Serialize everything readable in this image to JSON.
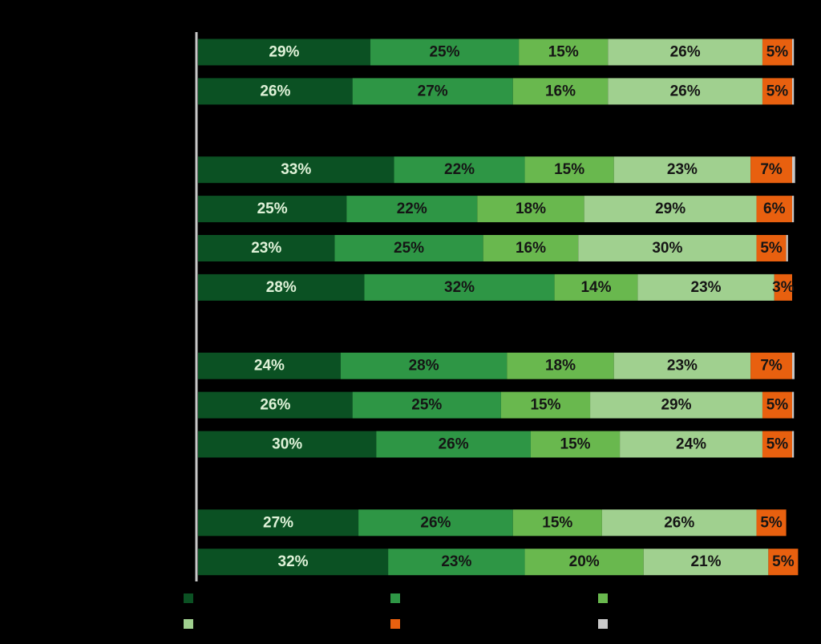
{
  "chart_data": {
    "type": "stacked-bar-horizontal",
    "xlim": [
      0,
      100
    ],
    "series": [
      {
        "color": "#0b5123",
        "values": [
          29,
          26,
          33,
          25,
          23,
          28,
          24,
          26,
          30,
          27,
          32
        ],
        "value_labels": [
          "29%",
          "26%",
          "33%",
          "25%",
          "23%",
          "28%",
          "24%",
          "26%",
          "30%",
          "27%",
          "32%"
        ]
      },
      {
        "color": "#2e9645",
        "values": [
          25,
          27,
          22,
          22,
          25,
          32,
          28,
          25,
          26,
          26,
          23
        ],
        "value_labels": [
          "25%",
          "27%",
          "22%",
          "22%",
          "25%",
          "32%",
          "28%",
          "25%",
          "26%",
          "26%",
          "23%"
        ]
      },
      {
        "color": "#69b84e",
        "values": [
          15,
          16,
          15,
          18,
          16,
          14,
          18,
          15,
          15,
          15,
          20
        ],
        "value_labels": [
          "15%",
          "16%",
          "15%",
          "18%",
          "16%",
          "14%",
          "18%",
          "15%",
          "15%",
          "15%",
          "20%"
        ]
      },
      {
        "color": "#a0d08f",
        "values": [
          26,
          26,
          23,
          29,
          30,
          23,
          23,
          29,
          24,
          26,
          21
        ],
        "value_labels": [
          "26%",
          "26%",
          "23%",
          "29%",
          "30%",
          "23%",
          "23%",
          "29%",
          "24%",
          "26%",
          "21%"
        ]
      },
      {
        "color": "#e8600f",
        "values": [
          5,
          5,
          7,
          6,
          5,
          3,
          7,
          5,
          5,
          5,
          5
        ],
        "value_labels": [
          "5%",
          "5%",
          "7%",
          "6%",
          "5%",
          "3%",
          "7%",
          "5%",
          "5%",
          "5%",
          "5%"
        ]
      },
      {
        "color": "#c8c8c8",
        "values": [
          0.3,
          0.3,
          0.5,
          0.3,
          0.3,
          0,
          0.4,
          0.3,
          0.3,
          0,
          0
        ]
      }
    ]
  }
}
